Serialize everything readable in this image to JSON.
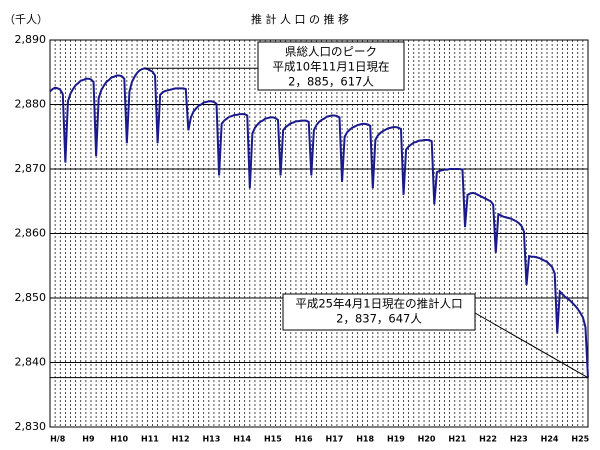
{
  "chart_data": {
    "type": "line",
    "title": "推 計 人 口 の 推 移",
    "y_label": "（千人）",
    "categories": [
      null,
      null,
      null,
      "H/8",
      null,
      null,
      null,
      null,
      null,
      null,
      null,
      null,
      null,
      null,
      null,
      "H9",
      null,
      null,
      null,
      null,
      null,
      null,
      null,
      null,
      null,
      null,
      null,
      "H10",
      null,
      null,
      null,
      null,
      null,
      null,
      null,
      null,
      null,
      null,
      null,
      "H11",
      null,
      null,
      null,
      null,
      null,
      null,
      null,
      null,
      null,
      null,
      null,
      "H12",
      null,
      null,
      null,
      null,
      null,
      null,
      null,
      null,
      null,
      null,
      null,
      "H13",
      null,
      null,
      null,
      null,
      null,
      null,
      null,
      null,
      null,
      null,
      null,
      "H14",
      null,
      null,
      null,
      null,
      null,
      null,
      null,
      null,
      null,
      null,
      null,
      "H15",
      null,
      null,
      null,
      null,
      null,
      null,
      null,
      null,
      null,
      null,
      null,
      "H16",
      null,
      null,
      null,
      null,
      null,
      null,
      null,
      null,
      null,
      null,
      null,
      "H17",
      null,
      null,
      null,
      null,
      null,
      null,
      null,
      null,
      null,
      null,
      null,
      "H18",
      null,
      null,
      null,
      null,
      null,
      null,
      null,
      null,
      null,
      null,
      null,
      "H19",
      null,
      null,
      null,
      null,
      null,
      null,
      null,
      null,
      null,
      null,
      null,
      "H20",
      null,
      null,
      null,
      null,
      null,
      null,
      null,
      null,
      null,
      null,
      null,
      "H21",
      null,
      null,
      null,
      null,
      null,
      null,
      null,
      null,
      null,
      null,
      null,
      "H22",
      null,
      null,
      null,
      null,
      null,
      null,
      null,
      null,
      null,
      null,
      null,
      "H23",
      null,
      null,
      null,
      null,
      null,
      null,
      null,
      null,
      null,
      null,
      null,
      "H24",
      null,
      null,
      null,
      null,
      null,
      null,
      null,
      null,
      null,
      null,
      null,
      "H25",
      null,
      null,
      null
    ],
    "series": [
      {
        "color": "#1a1a8c",
        "values": [
          2882.0,
          2882.4,
          2882.6,
          2882.5,
          2882.3,
          2881.6,
          2871,
          2880.5,
          2881.7,
          2882.4,
          2883.0,
          2883.3,
          2883.7,
          2883.8,
          2884.0,
          2884.0,
          2883.9,
          2883.5,
          2872,
          2881.0,
          2882.2,
          2882.9,
          2883.5,
          2883.8,
          2884.2,
          2884.3,
          2884.5,
          2884.5,
          2884.4,
          2884.0,
          2874,
          2882.0,
          2883.5,
          2884.3,
          2884.9,
          2885.3,
          2885.5,
          2885.617,
          2885.5,
          2885.3,
          2885.1,
          2884.5,
          2874,
          2881.5,
          2881.9,
          2882.1,
          2882.2,
          2882.3,
          2882.4,
          2882.5,
          2882.5,
          2882.5,
          2882.5,
          2882.4,
          2876,
          2878.0,
          2878.9,
          2879.4,
          2879.8,
          2880.0,
          2880.3,
          2880.4,
          2880.5,
          2880.5,
          2880.4,
          2880.1,
          2869,
          2877.0,
          2877.5,
          2877.8,
          2878.1,
          2878.2,
          2878.4,
          2878.4,
          2878.5,
          2878.5,
          2878.5,
          2878.3,
          2867,
          2875.5,
          2876.4,
          2876.9,
          2877.3,
          2877.5,
          2877.8,
          2877.9,
          2878.0,
          2878.0,
          2877.9,
          2877.6,
          2869,
          2876.0,
          2876.5,
          2876.8,
          2877.1,
          2877.2,
          2877.4,
          2877.4,
          2877.5,
          2877.5,
          2877.5,
          2877.3,
          2869,
          2876.0,
          2876.8,
          2877.3,
          2877.6,
          2877.8,
          2878.1,
          2878.2,
          2878.3,
          2878.3,
          2878.2,
          2878.0,
          2868,
          2875.0,
          2875.7,
          2876.1,
          2876.4,
          2876.6,
          2876.8,
          2876.9,
          2877.0,
          2877.0,
          2876.9,
          2876.7,
          2867,
          2874.5,
          2875.2,
          2875.6,
          2875.9,
          2876.1,
          2876.3,
          2876.4,
          2876.5,
          2876.5,
          2876.4,
          2876.2,
          2866,
          2873.0,
          2873.5,
          2873.8,
          2874.1,
          2874.2,
          2874.4,
          2874.4,
          2874.5,
          2874.5,
          2874.5,
          2874.3,
          2864.5,
          2869.5,
          2869.7,
          2869.8,
          2869.9,
          2869.9,
          2870.0,
          2870.0,
          2870.0,
          2870.0,
          2870.0,
          2869.9,
          2861,
          2866.0,
          2866.2,
          2866.3,
          2866.2,
          2866.0,
          2865.8,
          2865.6,
          2865.4,
          2865.2,
          2865.0,
          2864.5,
          2857,
          2863.0,
          2862.8,
          2862.6,
          2862.5,
          2862.4,
          2862.3,
          2862.1,
          2861.9,
          2861.6,
          2861.2,
          2860.3,
          2852,
          2856.5,
          2856.4,
          2856.4,
          2856.3,
          2856.2,
          2856.0,
          2855.8,
          2855.6,
          2855.2,
          2854.8,
          2853.8,
          2844.5,
          2851.0,
          2850.6,
          2850.2,
          2849.9,
          2849.6,
          2849.2,
          2848.8,
          2848.3,
          2847.7,
          2847.0,
          2845.5,
          2837.647
        ]
      }
    ],
    "ylim": [
      2830,
      2890
    ],
    "yticks": [
      {
        "value": 2830,
        "label": "2,830"
      },
      {
        "value": 2840,
        "label": "2,840"
      },
      {
        "value": 2850,
        "label": "2,850"
      },
      {
        "value": 2860,
        "label": "2,860"
      },
      {
        "value": 2870,
        "label": "2,870"
      },
      {
        "value": 2880,
        "label": "2,880"
      },
      {
        "value": 2890,
        "label": "2,890"
      }
    ],
    "grid": true,
    "annotations": [
      {
        "lines": [
          "県総人口のピーク",
          "平成10年11月1日現在",
          "2，885，617人"
        ]
      },
      {
        "lines": [
          "平成25年4月1日現在の推計人口",
          "2，837，647人"
        ]
      }
    ]
  }
}
